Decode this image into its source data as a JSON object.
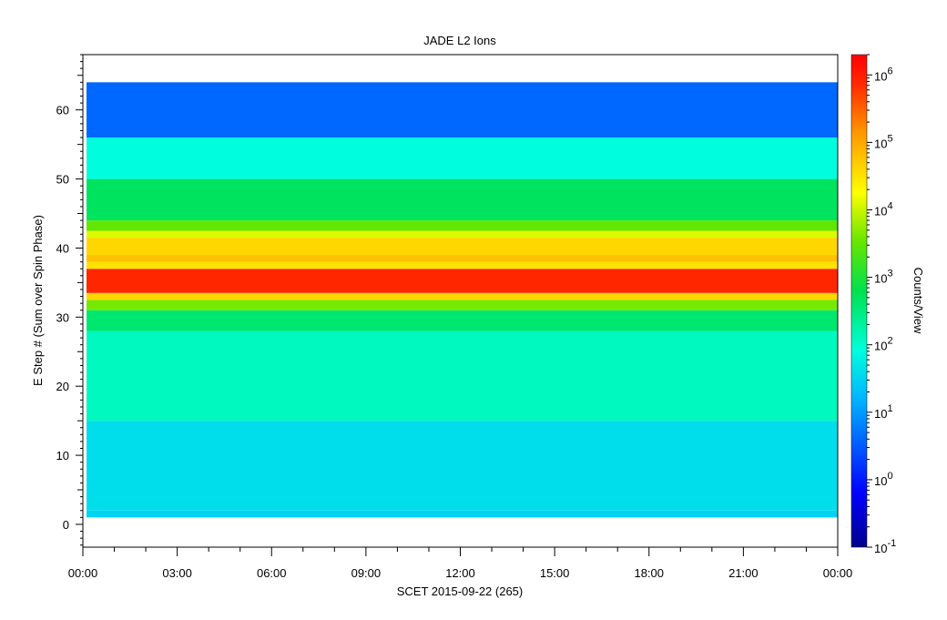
{
  "chart_data": {
    "type": "heatmap",
    "title": "JADE L2 Ions",
    "xlabel": "SCET 2015-09-22 (265)",
    "ylabel": "E Step # (Sum over Spin Phase)",
    "x_tick_labels": [
      "00:00",
      "03:00",
      "06:00",
      "09:00",
      "12:00",
      "15:00",
      "18:00",
      "21:00",
      "00:00"
    ],
    "xlim_hours": [
      0,
      24
    ],
    "y_ticks": [
      0,
      10,
      20,
      30,
      40,
      50,
      60
    ],
    "ylim": [
      -3.3,
      68
    ],
    "data_ylim": [
      1,
      64
    ],
    "colorbar": {
      "label": "Counts/View",
      "scale": "log",
      "range": [
        0.1,
        2000000
      ],
      "ticks": [
        {
          "mantissa": "10",
          "exp": "-1",
          "value": 0.1
        },
        {
          "mantissa": "10",
          "exp": "0",
          "value": 1
        },
        {
          "mantissa": "10",
          "exp": "1",
          "value": 10
        },
        {
          "mantissa": "10",
          "exp": "2",
          "value": 100
        },
        {
          "mantissa": "10",
          "exp": "3",
          "value": 1000
        },
        {
          "mantissa": "10",
          "exp": "4",
          "value": 10000
        },
        {
          "mantissa": "10",
          "exp": "5",
          "value": 100000
        },
        {
          "mantissa": "10",
          "exp": "6",
          "value": 1000000
        }
      ]
    },
    "energy_step_profile_log10_counts": [
      {
        "step_min": 1,
        "step_max": 2,
        "value": 1.5
      },
      {
        "step_min": 2,
        "step_max": 15,
        "value": 1.6
      },
      {
        "step_min": 15,
        "step_max": 28,
        "value": 2.1
      },
      {
        "step_min": 28,
        "step_max": 31,
        "value": 2.6
      },
      {
        "step_min": 31,
        "step_max": 32.5,
        "value": 3.6
      },
      {
        "step_min": 32.5,
        "step_max": 33.5,
        "value": 4.6
      },
      {
        "step_min": 33.5,
        "step_max": 37,
        "value": 5.9
      },
      {
        "step_min": 37,
        "step_max": 38,
        "value": 4.5
      },
      {
        "step_min": 38,
        "step_max": 39,
        "value": 4.8
      },
      {
        "step_min": 39,
        "step_max": 41.5,
        "value": 4.6
      },
      {
        "step_min": 41.5,
        "step_max": 42.5,
        "value": 4.1
      },
      {
        "step_min": 42.5,
        "step_max": 44,
        "value": 3.5
      },
      {
        "step_min": 44,
        "step_max": 50,
        "value": 2.7
      },
      {
        "step_min": 50,
        "step_max": 56,
        "value": 1.9
      },
      {
        "step_min": 56,
        "step_max": 64,
        "value": 0.6
      }
    ]
  }
}
